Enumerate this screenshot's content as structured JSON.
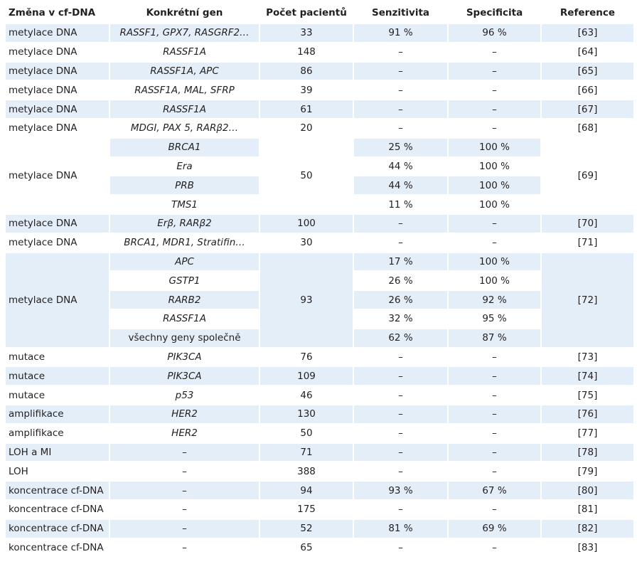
{
  "headers": [
    "Změna v cf-DNA",
    "Konkrétní gen",
    "Počet pacientů",
    "Senzitivita",
    "Specificita",
    "Reference"
  ],
  "rows": [
    {
      "cat": "metylace DNA",
      "gene": "RASSF1, GPX7, RASGRF2…",
      "n": "33",
      "sens": "91 %",
      "spec": "96 %",
      "ref": "[63]"
    },
    {
      "cat": "metylace DNA",
      "gene": "RASSF1A",
      "n": "148",
      "sens": "–",
      "spec": "–",
      "ref": "[64]"
    },
    {
      "cat": "metylace DNA",
      "gene": "RASSF1A, APC",
      "n": "86",
      "sens": "–",
      "spec": "–",
      "ref": "[65]"
    },
    {
      "cat": "metylace DNA",
      "gene": "RASSF1A, MAL, SFRP",
      "n": "39",
      "sens": "–",
      "spec": "–",
      "ref": "[66]"
    },
    {
      "cat": "metylace DNA",
      "gene": "RASSF1A",
      "n": "61",
      "sens": "–",
      "spec": "–",
      "ref": "[67]"
    },
    {
      "cat": "metylace DNA",
      "gene": "MDGI, PAX 5, RARβ2…",
      "n": "20",
      "sens": "–",
      "spec": "–",
      "ref": "[68]"
    }
  ],
  "group69": {
    "cat": "metylace DNA",
    "n": "50",
    "ref": "[69]",
    "rows": [
      {
        "gene": "BRCA1",
        "sens": "25 %",
        "spec": "100 %"
      },
      {
        "gene": "Era",
        "sens": "44 %",
        "spec": "100 %"
      },
      {
        "gene": "PRB",
        "sens": "44 %",
        "spec": "100 %"
      },
      {
        "gene": "TMS1",
        "sens": "11 %",
        "spec": "100 %"
      }
    ]
  },
  "rows2": [
    {
      "cat": "metylace DNA",
      "gene": "Erβ, RARβ2",
      "n": "100",
      "sens": "–",
      "spec": "–",
      "ref": "[70]"
    },
    {
      "cat": "metylace DNA",
      "gene": "BRCA1, MDR1, Stratifin…",
      "n": "30",
      "sens": "–",
      "spec": "–",
      "ref": "[71]"
    }
  ],
  "group72": {
    "cat": "metylace DNA",
    "n": "93",
    "ref": "[72]",
    "rows": [
      {
        "gene": "APC",
        "sens": "17 %",
        "spec": "100 %"
      },
      {
        "gene": "GSTP1",
        "sens": "26 %",
        "spec": "100 %"
      },
      {
        "gene": "RARB2",
        "sens": "26 %",
        "spec": "92 %"
      },
      {
        "gene": "RASSF1A",
        "sens": "32 %",
        "spec": "95 %"
      },
      {
        "gene": "všechny geny společně",
        "sens": "62 %",
        "spec": "87 %"
      }
    ]
  },
  "rows3": [
    {
      "cat": "mutace",
      "gene": "PIK3CA",
      "n": "76",
      "sens": "–",
      "spec": "–",
      "ref": "[73]"
    },
    {
      "cat": "mutace",
      "gene": "PIK3CA",
      "n": "109",
      "sens": "–",
      "spec": "–",
      "ref": "[74]"
    },
    {
      "cat": "mutace",
      "gene": "p53",
      "n": "46",
      "sens": "–",
      "spec": "–",
      "ref": "[75]"
    },
    {
      "cat": "amplifikace",
      "gene": "HER2",
      "n": "130",
      "sens": "–",
      "spec": "–",
      "ref": "[76]"
    },
    {
      "cat": "amplifikace",
      "gene": "HER2",
      "n": "50",
      "sens": "–",
      "spec": "–",
      "ref": "[77]"
    },
    {
      "cat": "LOH a MI",
      "gene": "–",
      "n": "71",
      "sens": "–",
      "spec": "–",
      "ref": "[78]"
    },
    {
      "cat": "LOH",
      "gene": "–",
      "n": "388",
      "sens": "–",
      "spec": "–",
      "ref": "[79]"
    },
    {
      "cat": "koncentrace cf-DNA",
      "gene": "–",
      "n": "94",
      "sens": "93 %",
      "spec": "67 %",
      "ref": "[80]"
    },
    {
      "cat": "koncentrace cf-DNA",
      "gene": "–",
      "n": "175",
      "sens": "–",
      "spec": "–",
      "ref": "[81]"
    },
    {
      "cat": "koncentrace cf-DNA",
      "gene": "–",
      "n": "52",
      "sens": "81 %",
      "spec": "69 %",
      "ref": "[82]"
    },
    {
      "cat": "koncentrace cf-DNA",
      "gene": "–",
      "n": "65",
      "sens": "–",
      "spec": "–",
      "ref": "[83]"
    }
  ]
}
